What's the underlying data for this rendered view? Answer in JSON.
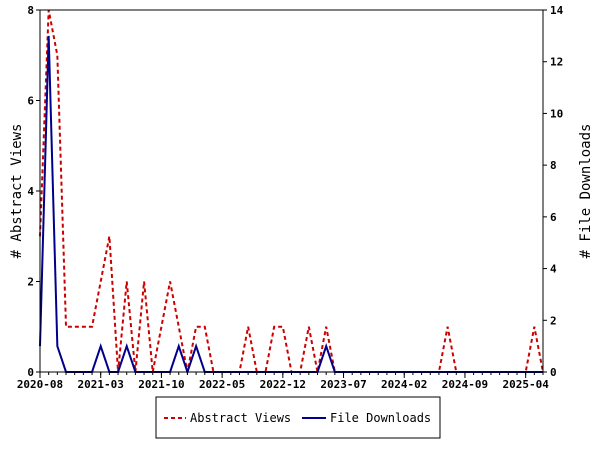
{
  "chart_data": {
    "type": "line",
    "title": "",
    "ylabel_left": "# Abstract Views",
    "ylabel_right": "# File Downloads",
    "ylim_left": [
      0,
      8
    ],
    "ylim_right": [
      0,
      14
    ],
    "yticks_left": [
      0,
      2,
      4,
      6,
      8
    ],
    "yticks_right": [
      0,
      2,
      4,
      6,
      8,
      10,
      12,
      14
    ],
    "x_labels": [
      "2020-08",
      "2021-03",
      "2021-10",
      "2022-05",
      "2022-12",
      "2023-07",
      "2024-02",
      "2024-09",
      "2025-04"
    ],
    "x_range": [
      "2020-08",
      "2025-06"
    ],
    "legend_position": "bottom",
    "colors": {
      "abstract": "#cc0000",
      "downloads": "#00008b"
    },
    "series": [
      {
        "name": "Abstract Views",
        "axis": "left",
        "style": "dashed",
        "points": [
          [
            "2020-08",
            3
          ],
          [
            "2020-09",
            8
          ],
          [
            "2020-10",
            7
          ],
          [
            "2020-11",
            1
          ],
          [
            "2020-12",
            1
          ],
          [
            "2021-01",
            1
          ],
          [
            "2021-02",
            1
          ],
          [
            "2021-03",
            2
          ],
          [
            "2021-04",
            3
          ],
          [
            "2021-05",
            0
          ],
          [
            "2021-06",
            2
          ],
          [
            "2021-07",
            0
          ],
          [
            "2021-08",
            2
          ],
          [
            "2021-09",
            0
          ],
          [
            "2021-10",
            1
          ],
          [
            "2021-11",
            2
          ],
          [
            "2021-12",
            1
          ],
          [
            "2022-01",
            0
          ],
          [
            "2022-02",
            1
          ],
          [
            "2022-03",
            1
          ],
          [
            "2022-04",
            0
          ],
          [
            "2022-05",
            0
          ],
          [
            "2022-06",
            0
          ],
          [
            "2022-07",
            0
          ],
          [
            "2022-08",
            1
          ],
          [
            "2022-09",
            0
          ],
          [
            "2022-10",
            0
          ],
          [
            "2022-11",
            1
          ],
          [
            "2022-12",
            1
          ],
          [
            "2023-01",
            0
          ],
          [
            "2023-02",
            0
          ],
          [
            "2023-03",
            1
          ],
          [
            "2023-04",
            0
          ],
          [
            "2023-05",
            1
          ],
          [
            "2023-06",
            0
          ],
          [
            "2023-07",
            0
          ],
          [
            "2023-08",
            0
          ],
          [
            "2023-09",
            0
          ],
          [
            "2023-10",
            0
          ],
          [
            "2023-11",
            0
          ],
          [
            "2023-12",
            0
          ],
          [
            "2024-01",
            0
          ],
          [
            "2024-02",
            0
          ],
          [
            "2024-03",
            0
          ],
          [
            "2024-04",
            0
          ],
          [
            "2024-05",
            0
          ],
          [
            "2024-06",
            0
          ],
          [
            "2024-07",
            1
          ],
          [
            "2024-08",
            0
          ],
          [
            "2024-09",
            0
          ],
          [
            "2024-10",
            0
          ],
          [
            "2024-11",
            0
          ],
          [
            "2024-12",
            0
          ],
          [
            "2025-01",
            0
          ],
          [
            "2025-02",
            0
          ],
          [
            "2025-03",
            0
          ],
          [
            "2025-04",
            0
          ],
          [
            "2025-05",
            1
          ],
          [
            "2025-06",
            0
          ]
        ]
      },
      {
        "name": "File Downloads",
        "axis": "right",
        "style": "solid",
        "points": [
          [
            "2020-08",
            1
          ],
          [
            "2020-09",
            13
          ],
          [
            "2020-10",
            1
          ],
          [
            "2020-11",
            0
          ],
          [
            "2020-12",
            0
          ],
          [
            "2021-01",
            0
          ],
          [
            "2021-02",
            0
          ],
          [
            "2021-03",
            1
          ],
          [
            "2021-04",
            0
          ],
          [
            "2021-05",
            0
          ],
          [
            "2021-06",
            1
          ],
          [
            "2021-07",
            0
          ],
          [
            "2021-08",
            0
          ],
          [
            "2021-09",
            0
          ],
          [
            "2021-10",
            0
          ],
          [
            "2021-11",
            0
          ],
          [
            "2021-12",
            1
          ],
          [
            "2022-01",
            0
          ],
          [
            "2022-02",
            1
          ],
          [
            "2022-03",
            0
          ],
          [
            "2022-04",
            0
          ],
          [
            "2022-05",
            0
          ],
          [
            "2022-06",
            0
          ],
          [
            "2022-07",
            0
          ],
          [
            "2022-08",
            0
          ],
          [
            "2022-09",
            0
          ],
          [
            "2022-10",
            0
          ],
          [
            "2022-11",
            0
          ],
          [
            "2022-12",
            0
          ],
          [
            "2023-01",
            0
          ],
          [
            "2023-02",
            0
          ],
          [
            "2023-03",
            0
          ],
          [
            "2023-04",
            0
          ],
          [
            "2023-05",
            1
          ],
          [
            "2023-06",
            0
          ],
          [
            "2023-07",
            0
          ],
          [
            "2023-08",
            0
          ],
          [
            "2023-09",
            0
          ],
          [
            "2023-10",
            0
          ],
          [
            "2023-11",
            0
          ],
          [
            "2023-12",
            0
          ],
          [
            "2024-01",
            0
          ],
          [
            "2024-02",
            0
          ],
          [
            "2024-03",
            0
          ],
          [
            "2024-04",
            0
          ],
          [
            "2024-05",
            0
          ],
          [
            "2024-06",
            0
          ],
          [
            "2024-07",
            0
          ],
          [
            "2024-08",
            0
          ],
          [
            "2024-09",
            0
          ],
          [
            "2024-10",
            0
          ],
          [
            "2024-11",
            0
          ],
          [
            "2024-12",
            0
          ],
          [
            "2025-01",
            0
          ],
          [
            "2025-02",
            0
          ],
          [
            "2025-03",
            0
          ],
          [
            "2025-04",
            0
          ],
          [
            "2025-05",
            0
          ],
          [
            "2025-06",
            0
          ]
        ]
      }
    ]
  }
}
